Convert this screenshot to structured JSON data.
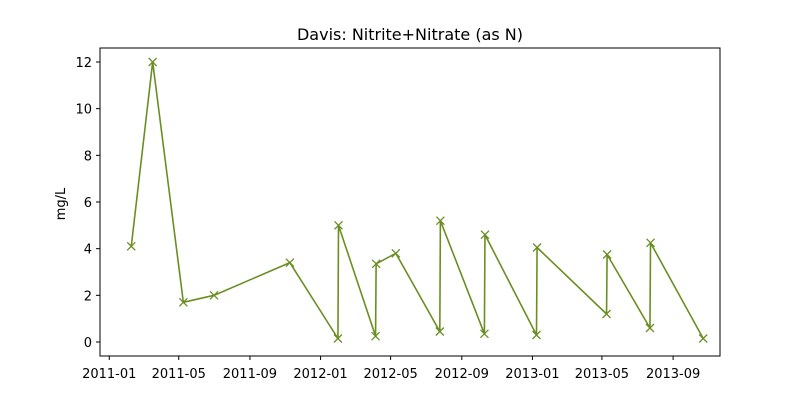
{
  "chart_data": {
    "type": "line",
    "title": "Davis: Nitrite+Nitrate (as N)",
    "xlabel": "",
    "ylabel": "mg/L",
    "x_axis_type": "date",
    "xlim": [
      "2010-12-16",
      "2013-11-21"
    ],
    "ylim": [
      -0.6,
      12.6
    ],
    "x_ticks": [
      "2011-01",
      "2011-05",
      "2011-09",
      "2012-01",
      "2012-05",
      "2012-09",
      "2013-01",
      "2013-05",
      "2013-09"
    ],
    "y_ticks": [
      0,
      2,
      4,
      6,
      8,
      10,
      12
    ],
    "grid": false,
    "series": [
      {
        "color": "#6b8e23",
        "marker": "x",
        "points": [
          {
            "x": "2011-02-08",
            "y": 4.1
          },
          {
            "x": "2011-03-17",
            "y": 12.0
          },
          {
            "x": "2011-05-09",
            "y": 1.7
          },
          {
            "x": "2011-07-01",
            "y": 2.0
          },
          {
            "x": "2011-11-09",
            "y": 3.4
          },
          {
            "x": "2012-01-31",
            "y": 0.15
          },
          {
            "x": "2012-02-01",
            "y": 5.0
          },
          {
            "x": "2012-04-05",
            "y": 0.25
          },
          {
            "x": "2012-04-06",
            "y": 3.35
          },
          {
            "x": "2012-05-10",
            "y": 3.8
          },
          {
            "x": "2012-07-25",
            "y": 0.45
          },
          {
            "x": "2012-07-26",
            "y": 5.2
          },
          {
            "x": "2012-10-10",
            "y": 0.35
          },
          {
            "x": "2012-10-11",
            "y": 4.6
          },
          {
            "x": "2013-01-08",
            "y": 0.3
          },
          {
            "x": "2013-01-09",
            "y": 4.05
          },
          {
            "x": "2013-05-09",
            "y": 1.2
          },
          {
            "x": "2013-05-10",
            "y": 3.75
          },
          {
            "x": "2013-07-23",
            "y": 0.6
          },
          {
            "x": "2013-07-24",
            "y": 4.25
          },
          {
            "x": "2013-10-23",
            "y": 0.15
          }
        ]
      }
    ]
  }
}
